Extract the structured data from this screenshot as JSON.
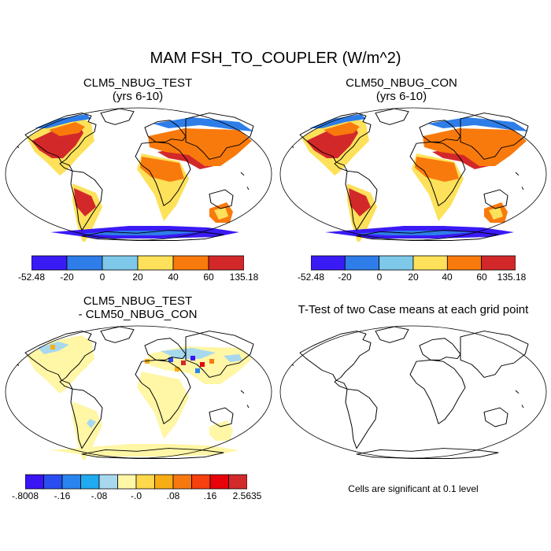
{
  "figure": {
    "title": "MAM FSH_TO_COUPLER (W/m^2)",
    "panels": [
      {
        "id": "test",
        "title_line1": "CLM5_NBUG_TEST",
        "title_line2": "(yrs 6-10)",
        "colorbar": {
          "colors": [
            "#3a1af5",
            "#2e7de8",
            "#7ec8ea",
            "#fde15a",
            "#f97a0c",
            "#d3282a"
          ],
          "labels": [
            "-52.48",
            "-20",
            "0",
            "20",
            "40",
            "60",
            "135.18"
          ]
        }
      },
      {
        "id": "control",
        "title_line1": "CLM50_NBUG_CON",
        "title_line2": "(yrs 6-10)",
        "colorbar": {
          "colors": [
            "#3a1af5",
            "#2e7de8",
            "#7ec8ea",
            "#fde15a",
            "#f97a0c",
            "#d3282a"
          ],
          "labels": [
            "-52.48",
            "-20",
            "0",
            "20",
            "40",
            "60",
            "135.18"
          ]
        }
      },
      {
        "id": "difference",
        "title_line1": "CLM5_NBUG_TEST",
        "title_line2": "- CLM50_NBUG_CON",
        "colorbar": {
          "colors": [
            "#3a14f2",
            "#2a4df0",
            "#2a84ef",
            "#20aaf0",
            "#a7d8ee",
            "#fff6a6",
            "#fcd84a",
            "#f9ad14",
            "#f87810",
            "#f6400e",
            "#e8020a",
            "#d2292b"
          ],
          "labels": [
            "-.8008",
            "-.16",
            "-.08",
            "-.0",
            ".08",
            ".16",
            "2.5635"
          ]
        }
      },
      {
        "id": "ttest",
        "title_line1": "T-Test of two Case means at each grid point",
        "note": "Cells are significant at 0.1 level"
      }
    ]
  }
}
